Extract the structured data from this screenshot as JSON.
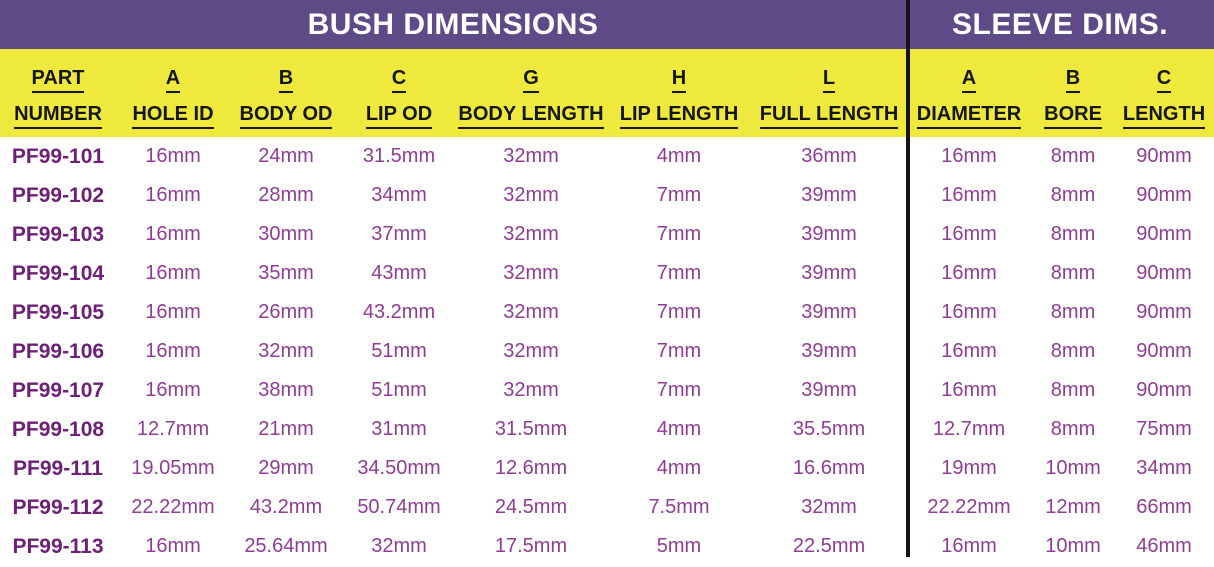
{
  "banner": {
    "bush_title": "BUSH DIMENSIONS",
    "sleeve_title": "SLEEVE DIMS."
  },
  "columns": [
    {
      "letter": "PART",
      "name": "NUMBER"
    },
    {
      "letter": "A",
      "name": "HOLE ID"
    },
    {
      "letter": "B",
      "name": "BODY OD"
    },
    {
      "letter": "C",
      "name": "LIP OD"
    },
    {
      "letter": "G",
      "name": "BODY LENGTH"
    },
    {
      "letter": "H",
      "name": "LIP LENGTH"
    },
    {
      "letter": "L",
      "name": "FULL LENGTH"
    },
    {
      "letter": "A",
      "name": "DIAMETER"
    },
    {
      "letter": "B",
      "name": "BORE"
    },
    {
      "letter": "C",
      "name": "LENGTH"
    }
  ],
  "rows": [
    {
      "part": "PF99-101",
      "hole_id": "16mm",
      "body_od": "24mm",
      "lip_od": "31.5mm",
      "body_length": "32mm",
      "lip_length": "4mm",
      "full_length": "36mm",
      "sleeve_diameter": "16mm",
      "sleeve_bore": "8mm",
      "sleeve_length": "90mm"
    },
    {
      "part": "PF99-102",
      "hole_id": "16mm",
      "body_od": "28mm",
      "lip_od": "34mm",
      "body_length": "32mm",
      "lip_length": "7mm",
      "full_length": "39mm",
      "sleeve_diameter": "16mm",
      "sleeve_bore": "8mm",
      "sleeve_length": "90mm"
    },
    {
      "part": "PF99-103",
      "hole_id": "16mm",
      "body_od": "30mm",
      "lip_od": "37mm",
      "body_length": "32mm",
      "lip_length": "7mm",
      "full_length": "39mm",
      "sleeve_diameter": "16mm",
      "sleeve_bore": "8mm",
      "sleeve_length": "90mm"
    },
    {
      "part": "PF99-104",
      "hole_id": "16mm",
      "body_od": "35mm",
      "lip_od": "43mm",
      "body_length": "32mm",
      "lip_length": "7mm",
      "full_length": "39mm",
      "sleeve_diameter": "16mm",
      "sleeve_bore": "8mm",
      "sleeve_length": "90mm"
    },
    {
      "part": "PF99-105",
      "hole_id": "16mm",
      "body_od": "26mm",
      "lip_od": "43.2mm",
      "body_length": "32mm",
      "lip_length": "7mm",
      "full_length": "39mm",
      "sleeve_diameter": "16mm",
      "sleeve_bore": "8mm",
      "sleeve_length": "90mm"
    },
    {
      "part": "PF99-106",
      "hole_id": "16mm",
      "body_od": "32mm",
      "lip_od": "51mm",
      "body_length": "32mm",
      "lip_length": "7mm",
      "full_length": "39mm",
      "sleeve_diameter": "16mm",
      "sleeve_bore": "8mm",
      "sleeve_length": "90mm"
    },
    {
      "part": "PF99-107",
      "hole_id": "16mm",
      "body_od": "38mm",
      "lip_od": "51mm",
      "body_length": "32mm",
      "lip_length": "7mm",
      "full_length": "39mm",
      "sleeve_diameter": "16mm",
      "sleeve_bore": "8mm",
      "sleeve_length": "90mm"
    },
    {
      "part": "PF99-108",
      "hole_id": "12.7mm",
      "body_od": "21mm",
      "lip_od": "31mm",
      "body_length": "31.5mm",
      "lip_length": "4mm",
      "full_length": "35.5mm",
      "sleeve_diameter": "12.7mm",
      "sleeve_bore": "8mm",
      "sleeve_length": "75mm"
    },
    {
      "part": "PF99-111",
      "hole_id": "19.05mm",
      "body_od": "29mm",
      "lip_od": "34.50mm",
      "body_length": "12.6mm",
      "lip_length": "4mm",
      "full_length": "16.6mm",
      "sleeve_diameter": "19mm",
      "sleeve_bore": "10mm",
      "sleeve_length": "34mm"
    },
    {
      "part": "PF99-112",
      "hole_id": "22.22mm",
      "body_od": "43.2mm",
      "lip_od": "50.74mm",
      "body_length": "24.5mm",
      "lip_length": "7.5mm",
      "full_length": "32mm",
      "sleeve_diameter": "22.22mm",
      "sleeve_bore": "12mm",
      "sleeve_length": "66mm"
    },
    {
      "part": "PF99-113",
      "hole_id": "16mm",
      "body_od": "25.64mm",
      "lip_od": "32mm",
      "body_length": "17.5mm",
      "lip_length": "5mm",
      "full_length": "22.5mm",
      "sleeve_diameter": "16mm",
      "sleeve_bore": "10mm",
      "sleeve_length": "46mm"
    }
  ],
  "colors": {
    "banner_purple": "#5E4A87",
    "header_yellow": "#EFE93D",
    "part_number_text": "#6E2077",
    "value_text": "#903C94",
    "divider_black": "#141414"
  }
}
